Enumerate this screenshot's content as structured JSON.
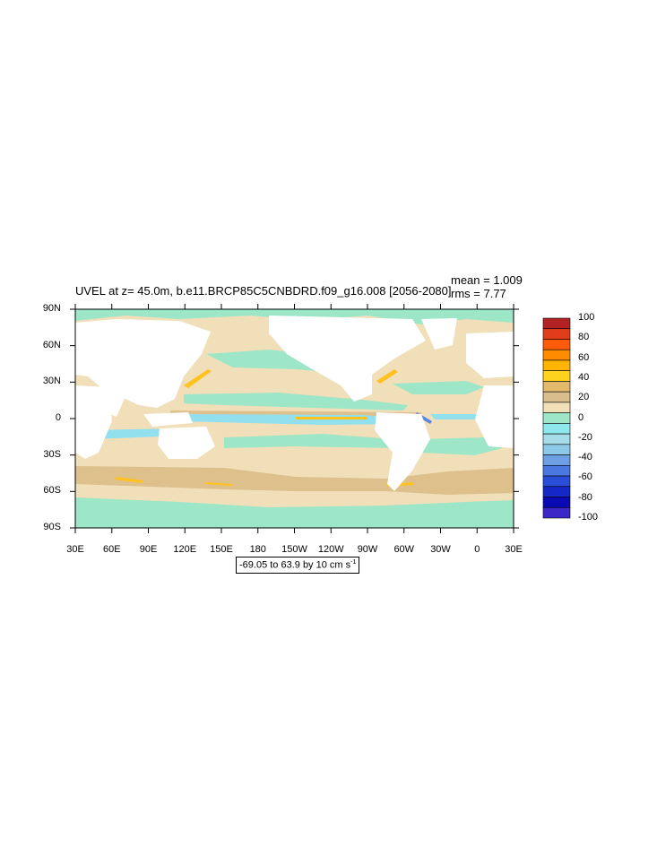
{
  "title": "UVEL at z=  45.0m, b.e11.BRCP85C5CNBDRD.f09_g16.008 [2056-2080]",
  "stats": {
    "mean": "mean = 1.009",
    "rms": "rms = 7.77"
  },
  "lat_ticks": [
    "90N",
    "60N",
    "30N",
    "0",
    "30S",
    "60S",
    "90S"
  ],
  "lon_ticks": [
    "30E",
    "60E",
    "90E",
    "120E",
    "150E",
    "180",
    "150W",
    "120W",
    "90W",
    "60W",
    "30W",
    "0",
    "30E"
  ],
  "range_text": "-69.05 to 63.9 by 10 cm s",
  "range_unit_exp": "-1",
  "colorbar": {
    "labels": [
      "100",
      "80",
      "60",
      "40",
      "20",
      "0",
      "-20",
      "-40",
      "-60",
      "-80",
      "-100"
    ],
    "colors": [
      "#b22222",
      "#e03c1c",
      "#ff5a0a",
      "#ff8c00",
      "#ffb400",
      "#ffd21e",
      "#e3b96b",
      "#d9bd8c",
      "#f0dfb8",
      "#9ee6c8",
      "#8ee8ee",
      "#a6dde8",
      "#8cc8e8",
      "#6ea0e6",
      "#4a78e0",
      "#2a4ed8",
      "#1428c8",
      "#0a0ab4",
      "#3c28c8"
    ]
  },
  "map": {
    "ocean_color": "#f0dfb8",
    "band_teal": "#9ee6c8",
    "band_tan": "#ddc08c",
    "band_cyan": "#92dfee",
    "band_orange": "#ffc21e",
    "band_blue": "#5a86e6"
  }
}
